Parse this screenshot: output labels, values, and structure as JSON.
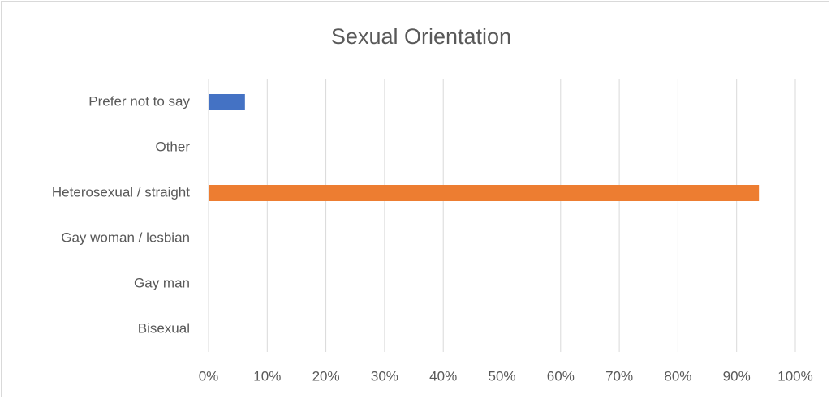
{
  "chart_data": {
    "type": "bar",
    "orientation": "horizontal",
    "title": "Sexual Orientation",
    "categories": [
      "Prefer not to say",
      "Other",
      "Heterosexual / straight",
      "Gay woman / lesbian",
      "Gay man",
      "Bisexual"
    ],
    "values": [
      6.2,
      0,
      93.8,
      0,
      0,
      0
    ],
    "colors": [
      "#4472c4",
      "#a5a5a5",
      "#ed7d31",
      "#ffc000",
      "#5b9bd5",
      "#70ad47"
    ],
    "xlim": [
      0,
      100
    ],
    "xticks": [
      {
        "value": 0,
        "label": "0%"
      },
      {
        "value": 10,
        "label": "10%"
      },
      {
        "value": 20,
        "label": "20%"
      },
      {
        "value": 30,
        "label": "30%"
      },
      {
        "value": 40,
        "label": "40%"
      },
      {
        "value": 50,
        "label": "50%"
      },
      {
        "value": 60,
        "label": "60%"
      },
      {
        "value": 70,
        "label": "70%"
      },
      {
        "value": 80,
        "label": "80%"
      },
      {
        "value": 90,
        "label": "90%"
      },
      {
        "value": 100,
        "label": "100%"
      }
    ],
    "grid": true
  }
}
